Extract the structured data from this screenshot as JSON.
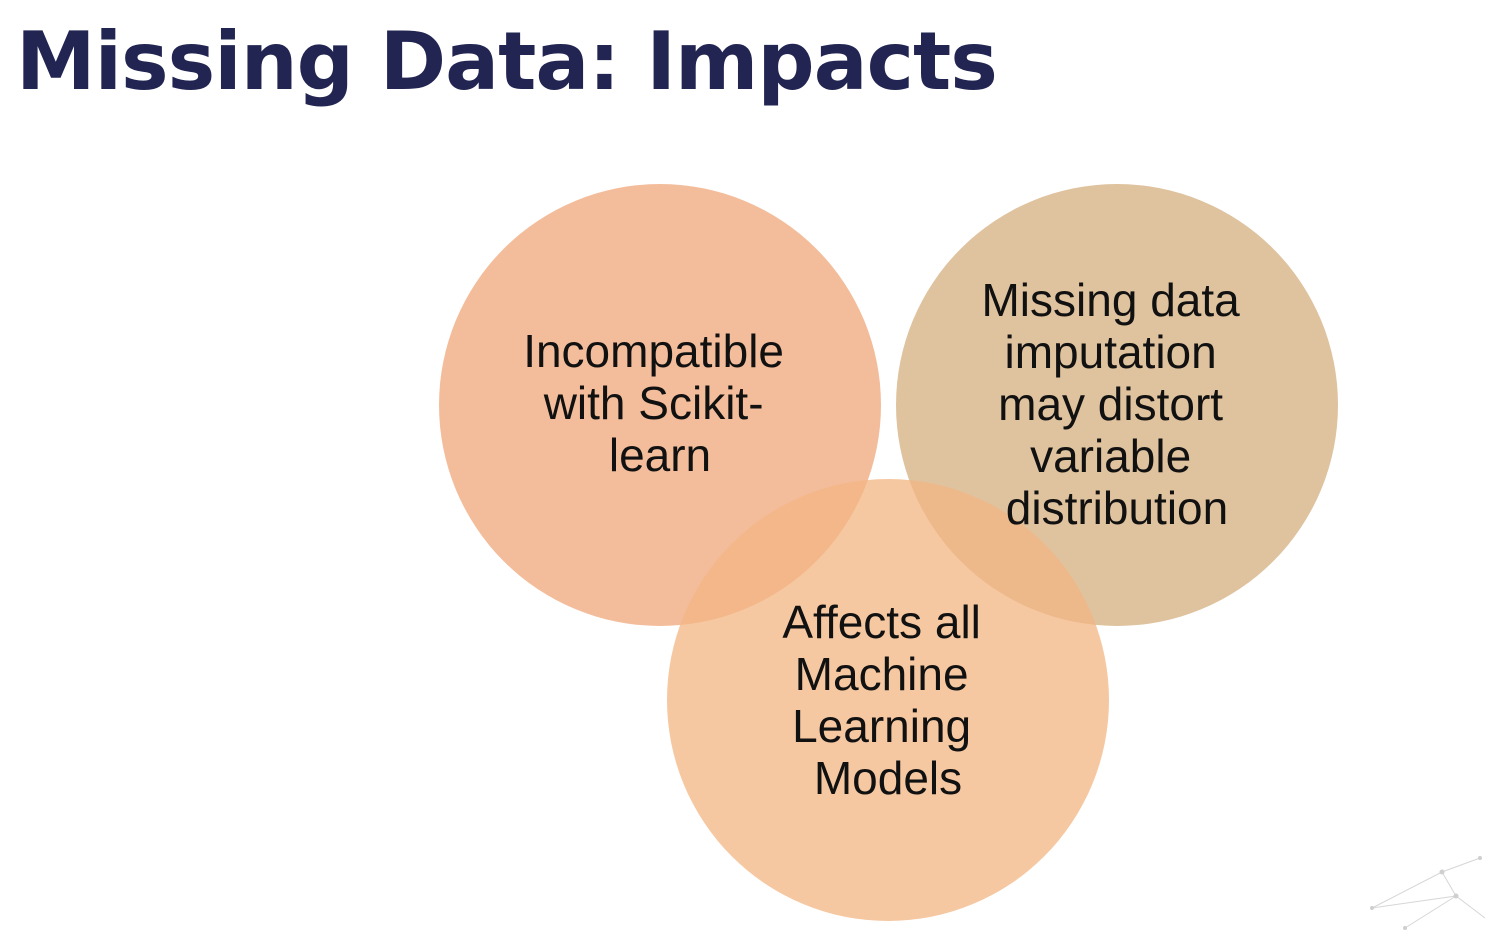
{
  "slide": {
    "title": "Missing Data: Impacts",
    "title_color": "#222552"
  },
  "venn": {
    "text_color": "#111111",
    "circles": [
      {
        "name": "incompatible",
        "color": "#efa77a",
        "lines": [
          "Incompatible",
          "with Scikit-",
          "learn"
        ]
      },
      {
        "name": "imputation",
        "color": "#d4ad7d",
        "lines": [
          "Missing data",
          "imputation",
          "may distort",
          "variable",
          "distribution"
        ]
      },
      {
        "name": "affects-models",
        "color": "#f3b683",
        "lines": [
          "Affects all",
          "Machine",
          "Learning",
          "Models"
        ]
      }
    ]
  }
}
